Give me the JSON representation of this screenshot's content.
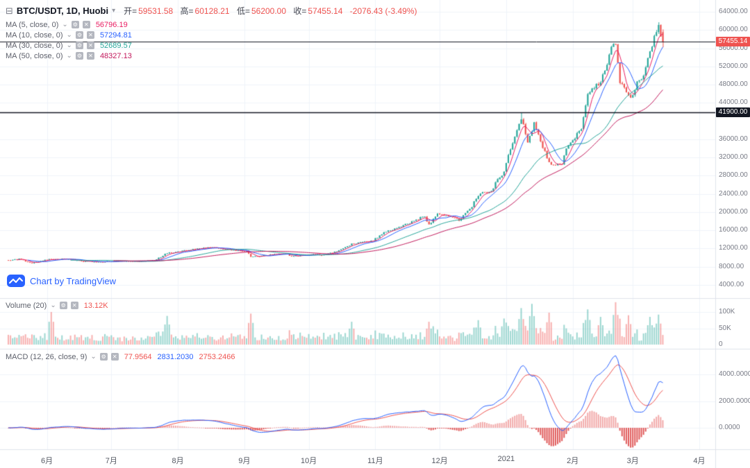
{
  "header": {
    "symbol": "BTC/USDT, 1D, Huobi",
    "open_label": "开=",
    "open": "59531.58",
    "high_label": "高=",
    "high": "60128.21",
    "low_label": "低=",
    "low": "56200.00",
    "close_label": "收=",
    "close": "57455.14",
    "change": "-2076.43 (-3.49%)"
  },
  "icons": {
    "layout": "⊟",
    "dropdown": "▾",
    "caret": "⌄",
    "settings": "⚙",
    "close": "✕"
  },
  "indicators": {
    "ma": [
      {
        "label": "MA (5, close, 0)",
        "value": "56796.19",
        "color": "#e91e63",
        "period": 5
      },
      {
        "label": "MA (10, close, 0)",
        "value": "57294.81",
        "color": "#2962ff",
        "period": 10
      },
      {
        "label": "MA (30, close, 0)",
        "value": "52689.57",
        "color": "#26a69a",
        "period": 30
      },
      {
        "label": "MA (50, close, 0)",
        "value": "48327.13",
        "color": "#c2185b",
        "period": 50
      }
    ],
    "volume": {
      "label": "Volume (20)",
      "value": "13.12K",
      "color": "#ef5350"
    },
    "macd": {
      "label": "MACD (12, 26, close, 9)",
      "values": [
        "77.9564",
        "2831.2030",
        "2753.2466"
      ],
      "value_colors": [
        "#ef5350",
        "#2962ff",
        "#ef5350"
      ]
    }
  },
  "watermark": {
    "text": "Chart by TradingView"
  },
  "axes": {
    "price_ticks": [
      {
        "v": 64000,
        "label": "64000.00"
      },
      {
        "v": 60000,
        "label": "60000.00"
      },
      {
        "v": 56000,
        "label": "56000.00"
      },
      {
        "v": 52000,
        "label": "52000.00"
      },
      {
        "v": 48000,
        "label": "48000.00"
      },
      {
        "v": 44000,
        "label": "44000.00"
      },
      {
        "v": 36000,
        "label": "36000.00"
      },
      {
        "v": 32000,
        "label": "32000.00"
      },
      {
        "v": 28000,
        "label": "28000.00"
      },
      {
        "v": 24000,
        "label": "24000.00"
      },
      {
        "v": 20000,
        "label": "20000.00"
      },
      {
        "v": 16000,
        "label": "16000.00"
      },
      {
        "v": 12000,
        "label": "12000.00"
      },
      {
        "v": 8000,
        "label": "8000.00"
      },
      {
        "v": 4000,
        "label": "4000.00"
      }
    ],
    "volume_ticks": [
      {
        "v": 100000,
        "label": "100K"
      },
      {
        "v": 50000,
        "label": "50K"
      },
      {
        "v": 0,
        "label": "0"
      }
    ],
    "macd_ticks": [
      {
        "v": 4000,
        "label": "4000.0000"
      },
      {
        "v": 2000,
        "label": "2000.0000"
      },
      {
        "v": 0,
        "label": "0.0000"
      }
    ],
    "time_ticks": [
      {
        "d": 18,
        "label": "6月"
      },
      {
        "d": 48,
        "label": "7月"
      },
      {
        "d": 79,
        "label": "8月"
      },
      {
        "d": 110,
        "label": "9月"
      },
      {
        "d": 140,
        "label": "10月"
      },
      {
        "d": 171,
        "label": "11月"
      },
      {
        "d": 201,
        "label": "12月"
      },
      {
        "d": 232,
        "label": "2021"
      },
      {
        "d": 263,
        "label": "2月"
      },
      {
        "d": 291,
        "label": "3月"
      },
      {
        "d": 322,
        "label": "4月"
      }
    ],
    "last_price_label": "57455.14",
    "level_label": "41900.00"
  },
  "theme": {
    "up": "#26a69a",
    "down": "#ef5350",
    "grid": "#f0f3fa",
    "axis_border": "#e0e3eb",
    "text": "#787b86",
    "level_line": "#131722",
    "accent_blue": "#2962ff",
    "vol_up": "rgba(38,166,154,0.45)",
    "vol_down": "rgba(239,83,80,0.45)",
    "hist_pos": "#f2a9a9",
    "hist_neg": "#e05a5a",
    "macd_line": "#2962ff",
    "signal_line": "#ef5350"
  },
  "chart_data": {
    "type": "candlestick",
    "title": "BTC/USDT 1D Huobi",
    "panes": [
      "price+MA(5,10,30,50)",
      "volume(20)",
      "MACD(12,26,9)"
    ],
    "price_axis": {
      "min": 1100,
      "max": 66600,
      "tick_step": 4000
    },
    "volume_axis": {
      "min": 0,
      "max": 134000
    },
    "macd_axis": {
      "min": -1610,
      "max": 5820
    },
    "seed": 5,
    "days_total": 306,
    "anchors": [
      [
        0,
        9400
      ],
      [
        5,
        9700
      ],
      [
        11,
        8800
      ],
      [
        17,
        9550
      ],
      [
        28,
        9750
      ],
      [
        33,
        9300
      ],
      [
        44,
        9050
      ],
      [
        48,
        9230
      ],
      [
        62,
        9200
      ],
      [
        68,
        9350
      ],
      [
        74,
        11000
      ],
      [
        79,
        11300
      ],
      [
        88,
        11900
      ],
      [
        95,
        12300
      ],
      [
        104,
        11700
      ],
      [
        111,
        11400
      ],
      [
        113,
        10200
      ],
      [
        117,
        10300
      ],
      [
        129,
        11000
      ],
      [
        132,
        10250
      ],
      [
        140,
        10700
      ],
      [
        146,
        10600
      ],
      [
        153,
        11400
      ],
      [
        160,
        12950
      ],
      [
        170,
        13800
      ],
      [
        175,
        15500
      ],
      [
        187,
        17650
      ],
      [
        194,
        19150
      ],
      [
        196,
        17150
      ],
      [
        200,
        19700
      ],
      [
        210,
        18300
      ],
      [
        216,
        21300
      ],
      [
        219,
        23800
      ],
      [
        225,
        24700
      ],
      [
        227,
        26300
      ],
      [
        231,
        29000
      ],
      [
        233,
        32200
      ],
      [
        239,
        40600
      ],
      [
        242,
        35500
      ],
      [
        245,
        39300
      ],
      [
        252,
        30800
      ],
      [
        258,
        30400
      ],
      [
        260,
        34300
      ],
      [
        267,
        38000
      ],
      [
        270,
        46400
      ],
      [
        276,
        48600
      ],
      [
        281,
        55900
      ],
      [
        283,
        57400
      ],
      [
        285,
        48800
      ],
      [
        287,
        47000
      ],
      [
        290,
        45100
      ],
      [
        293,
        48400
      ],
      [
        295,
        48900
      ],
      [
        299,
        54900
      ],
      [
        303,
        61200
      ],
      [
        304,
        59000
      ],
      [
        305,
        57455
      ]
    ],
    "forced_highs": {
      "239": 41900,
      "303": 61700
    },
    "last_candle": {
      "open": 59531.58,
      "high": 60128.21,
      "low": 56200.0,
      "close": 57455.14
    },
    "level_line": 41900.0,
    "volume_spikes": [
      [
        20,
        100000
      ],
      [
        74,
        88000
      ],
      [
        113,
        95000
      ],
      [
        160,
        70000
      ],
      [
        196,
        70000
      ],
      [
        219,
        75000
      ],
      [
        231,
        80000
      ],
      [
        239,
        112000
      ],
      [
        244,
        125000
      ],
      [
        252,
        98000
      ],
      [
        270,
        108000
      ],
      [
        276,
        85000
      ],
      [
        283,
        130000
      ],
      [
        289,
        90000
      ],
      [
        299,
        85000
      ],
      [
        303,
        92000
      ]
    ]
  }
}
